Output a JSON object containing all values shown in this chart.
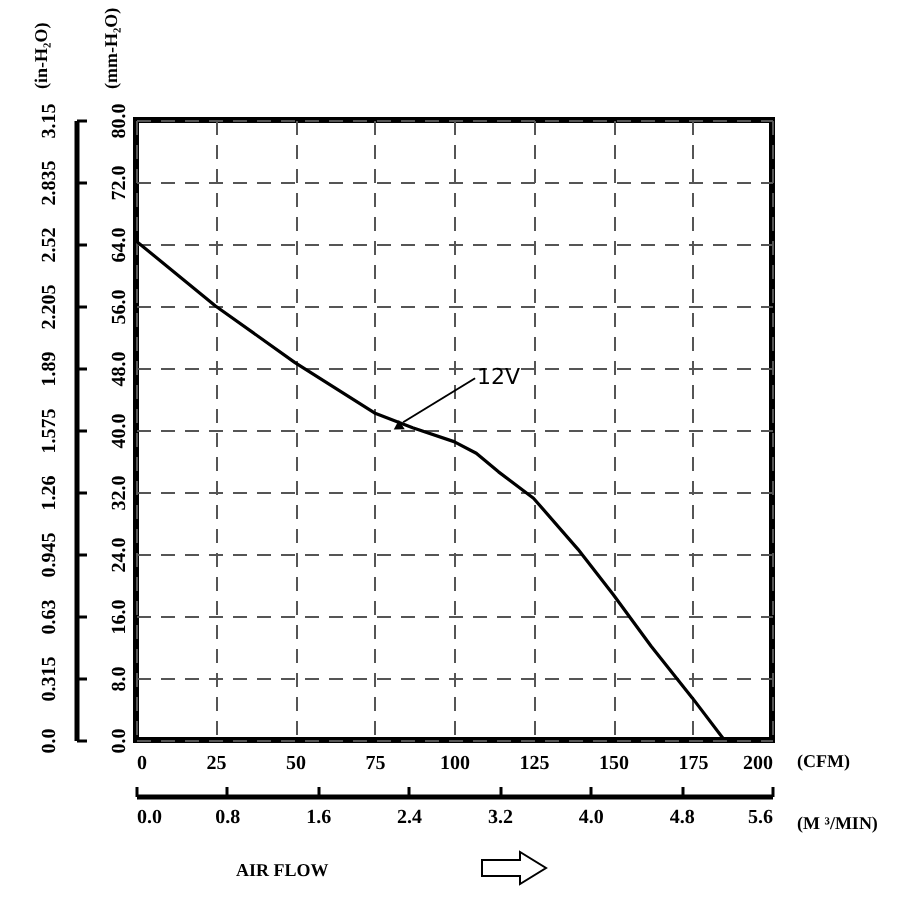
{
  "chart_data": {
    "type": "line",
    "x": [
      0,
      25,
      50,
      75,
      87,
      100,
      107,
      114,
      125,
      139,
      150,
      162,
      175,
      185
    ],
    "series": [
      {
        "color": "#000000",
        "values": [
          64.4,
          56,
          48.7,
          42.2,
          40.3,
          38.5,
          37,
          34.6,
          31.2,
          24.6,
          18.8,
          12.1,
          5.4,
          0
        ]
      }
    ],
    "xlabel": "(CFM)",
    "ylabel": "(mm-H₂O)",
    "y2label": "(in-H₂O)",
    "x2label": "(M ³/MIN)",
    "xlim": [
      0,
      200
    ],
    "xticks": [
      0,
      25,
      50,
      75,
      100,
      125,
      150,
      175,
      200
    ],
    "ylim": [
      0,
      80
    ],
    "yticks": [
      {
        "value": 0,
        "label": "0.0"
      },
      {
        "value": 8,
        "label": "8.0"
      },
      {
        "value": 16,
        "label": "16.0"
      },
      {
        "value": 24,
        "label": "24.0"
      },
      {
        "value": 32,
        "label": "32.0"
      },
      {
        "value": 40,
        "label": "40.0"
      },
      {
        "value": 48,
        "label": "48.0"
      },
      {
        "value": 56,
        "label": "56.0"
      },
      {
        "value": 64,
        "label": "64.0"
      },
      {
        "value": 72,
        "label": "72.0"
      },
      {
        "value": 80,
        "label": "80.0"
      }
    ],
    "y2lim": [
      0,
      3.15
    ],
    "y2ticks": [
      {
        "value": 0,
        "label": "0.0"
      },
      0.315,
      0.63,
      0.945,
      1.26,
      1.575,
      1.89,
      2.205,
      2.52,
      2.835,
      3.15
    ],
    "x2lim": [
      0,
      5.6
    ],
    "x2ticks": [
      {
        "value": 0,
        "label": "0.0"
      },
      0.8,
      1.6,
      2.4,
      3.2,
      {
        "value": 4,
        "label": "4.0"
      },
      4.8,
      5.6
    ],
    "grid": true,
    "annotations": [
      {
        "text": "12V",
        "x": 84,
        "y": 41
      },
      "AIR FLOW"
    ]
  }
}
